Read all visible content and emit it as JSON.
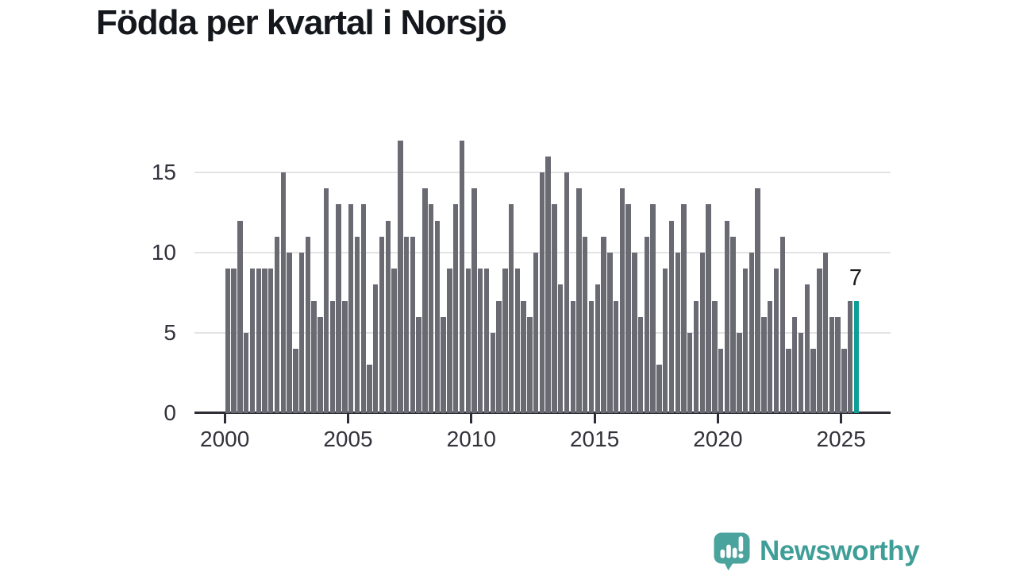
{
  "title": "Födda per kvartal i Norsjö",
  "chart_data": {
    "type": "bar",
    "title": "Födda per kvartal i Norsjö",
    "x_unit": "quarter",
    "categories": [
      "2000Q1",
      "2000Q2",
      "2000Q3",
      "2000Q4",
      "2001Q1",
      "2001Q2",
      "2001Q3",
      "2001Q4",
      "2002Q1",
      "2002Q2",
      "2002Q3",
      "2002Q4",
      "2003Q1",
      "2003Q2",
      "2003Q3",
      "2003Q4",
      "2004Q1",
      "2004Q2",
      "2004Q3",
      "2004Q4",
      "2005Q1",
      "2005Q2",
      "2005Q3",
      "2005Q4",
      "2006Q1",
      "2006Q2",
      "2006Q3",
      "2006Q4",
      "2007Q1",
      "2007Q2",
      "2007Q3",
      "2007Q4",
      "2008Q1",
      "2008Q2",
      "2008Q3",
      "2008Q4",
      "2009Q1",
      "2009Q2",
      "2009Q3",
      "2009Q4",
      "2010Q1",
      "2010Q2",
      "2010Q3",
      "2010Q4",
      "2011Q1",
      "2011Q2",
      "2011Q3",
      "2011Q4",
      "2012Q1",
      "2012Q2",
      "2012Q3",
      "2012Q4",
      "2013Q1",
      "2013Q2",
      "2013Q3",
      "2013Q4",
      "2014Q1",
      "2014Q2",
      "2014Q3",
      "2014Q4",
      "2015Q1",
      "2015Q2",
      "2015Q3",
      "2015Q4",
      "2016Q1",
      "2016Q2",
      "2016Q3",
      "2016Q4",
      "2017Q1",
      "2017Q2",
      "2017Q3",
      "2017Q4",
      "2018Q1",
      "2018Q2",
      "2018Q3",
      "2018Q4",
      "2019Q1",
      "2019Q2",
      "2019Q3",
      "2019Q4",
      "2020Q1",
      "2020Q2",
      "2020Q3",
      "2020Q4",
      "2021Q1",
      "2021Q2",
      "2021Q3",
      "2021Q4",
      "2022Q1",
      "2022Q2",
      "2022Q3",
      "2022Q4",
      "2023Q1",
      "2023Q2",
      "2023Q3",
      "2023Q4",
      "2024Q1",
      "2024Q2",
      "2024Q3",
      "2024Q4",
      "2025Q1",
      "2025Q2",
      "2025Q3"
    ],
    "values": [
      9,
      9,
      12,
      5,
      9,
      9,
      9,
      9,
      11,
      15,
      10,
      4,
      10,
      11,
      7,
      6,
      14,
      7,
      13,
      7,
      13,
      11,
      13,
      3,
      8,
      11,
      12,
      9,
      17,
      11,
      11,
      6,
      14,
      13,
      12,
      6,
      9,
      13,
      17,
      9,
      14,
      9,
      9,
      5,
      7,
      9,
      13,
      9,
      7,
      6,
      10,
      15,
      16,
      13,
      8,
      15,
      7,
      14,
      11,
      7,
      8,
      11,
      10,
      7,
      14,
      13,
      10,
      6,
      11,
      13,
      3,
      9,
      12,
      10,
      13,
      5,
      7,
      10,
      13,
      7,
      4,
      12,
      11,
      5,
      9,
      10,
      14,
      6,
      7,
      9,
      11,
      4,
      6,
      5,
      8,
      4,
      9,
      10,
      6,
      6,
      4,
      7,
      7
    ],
    "highlight": {
      "index": 102,
      "category": "2025Q3",
      "label": "7"
    },
    "xticks": [
      "2000",
      "2005",
      "2010",
      "2015",
      "2020",
      "2025"
    ],
    "yticks": [
      0,
      5,
      10,
      15
    ],
    "ylim": [
      0,
      17.5
    ],
    "grid": "horizontal",
    "legend": "none",
    "colors": {
      "bar": "#6a6a73",
      "highlight": "#0d9e96",
      "axis": "#2e2e36",
      "gridline": "#e3e3e4",
      "label": "#32323a"
    }
  },
  "branding": {
    "name": "Newsworthy",
    "color": "#3f9f98"
  }
}
